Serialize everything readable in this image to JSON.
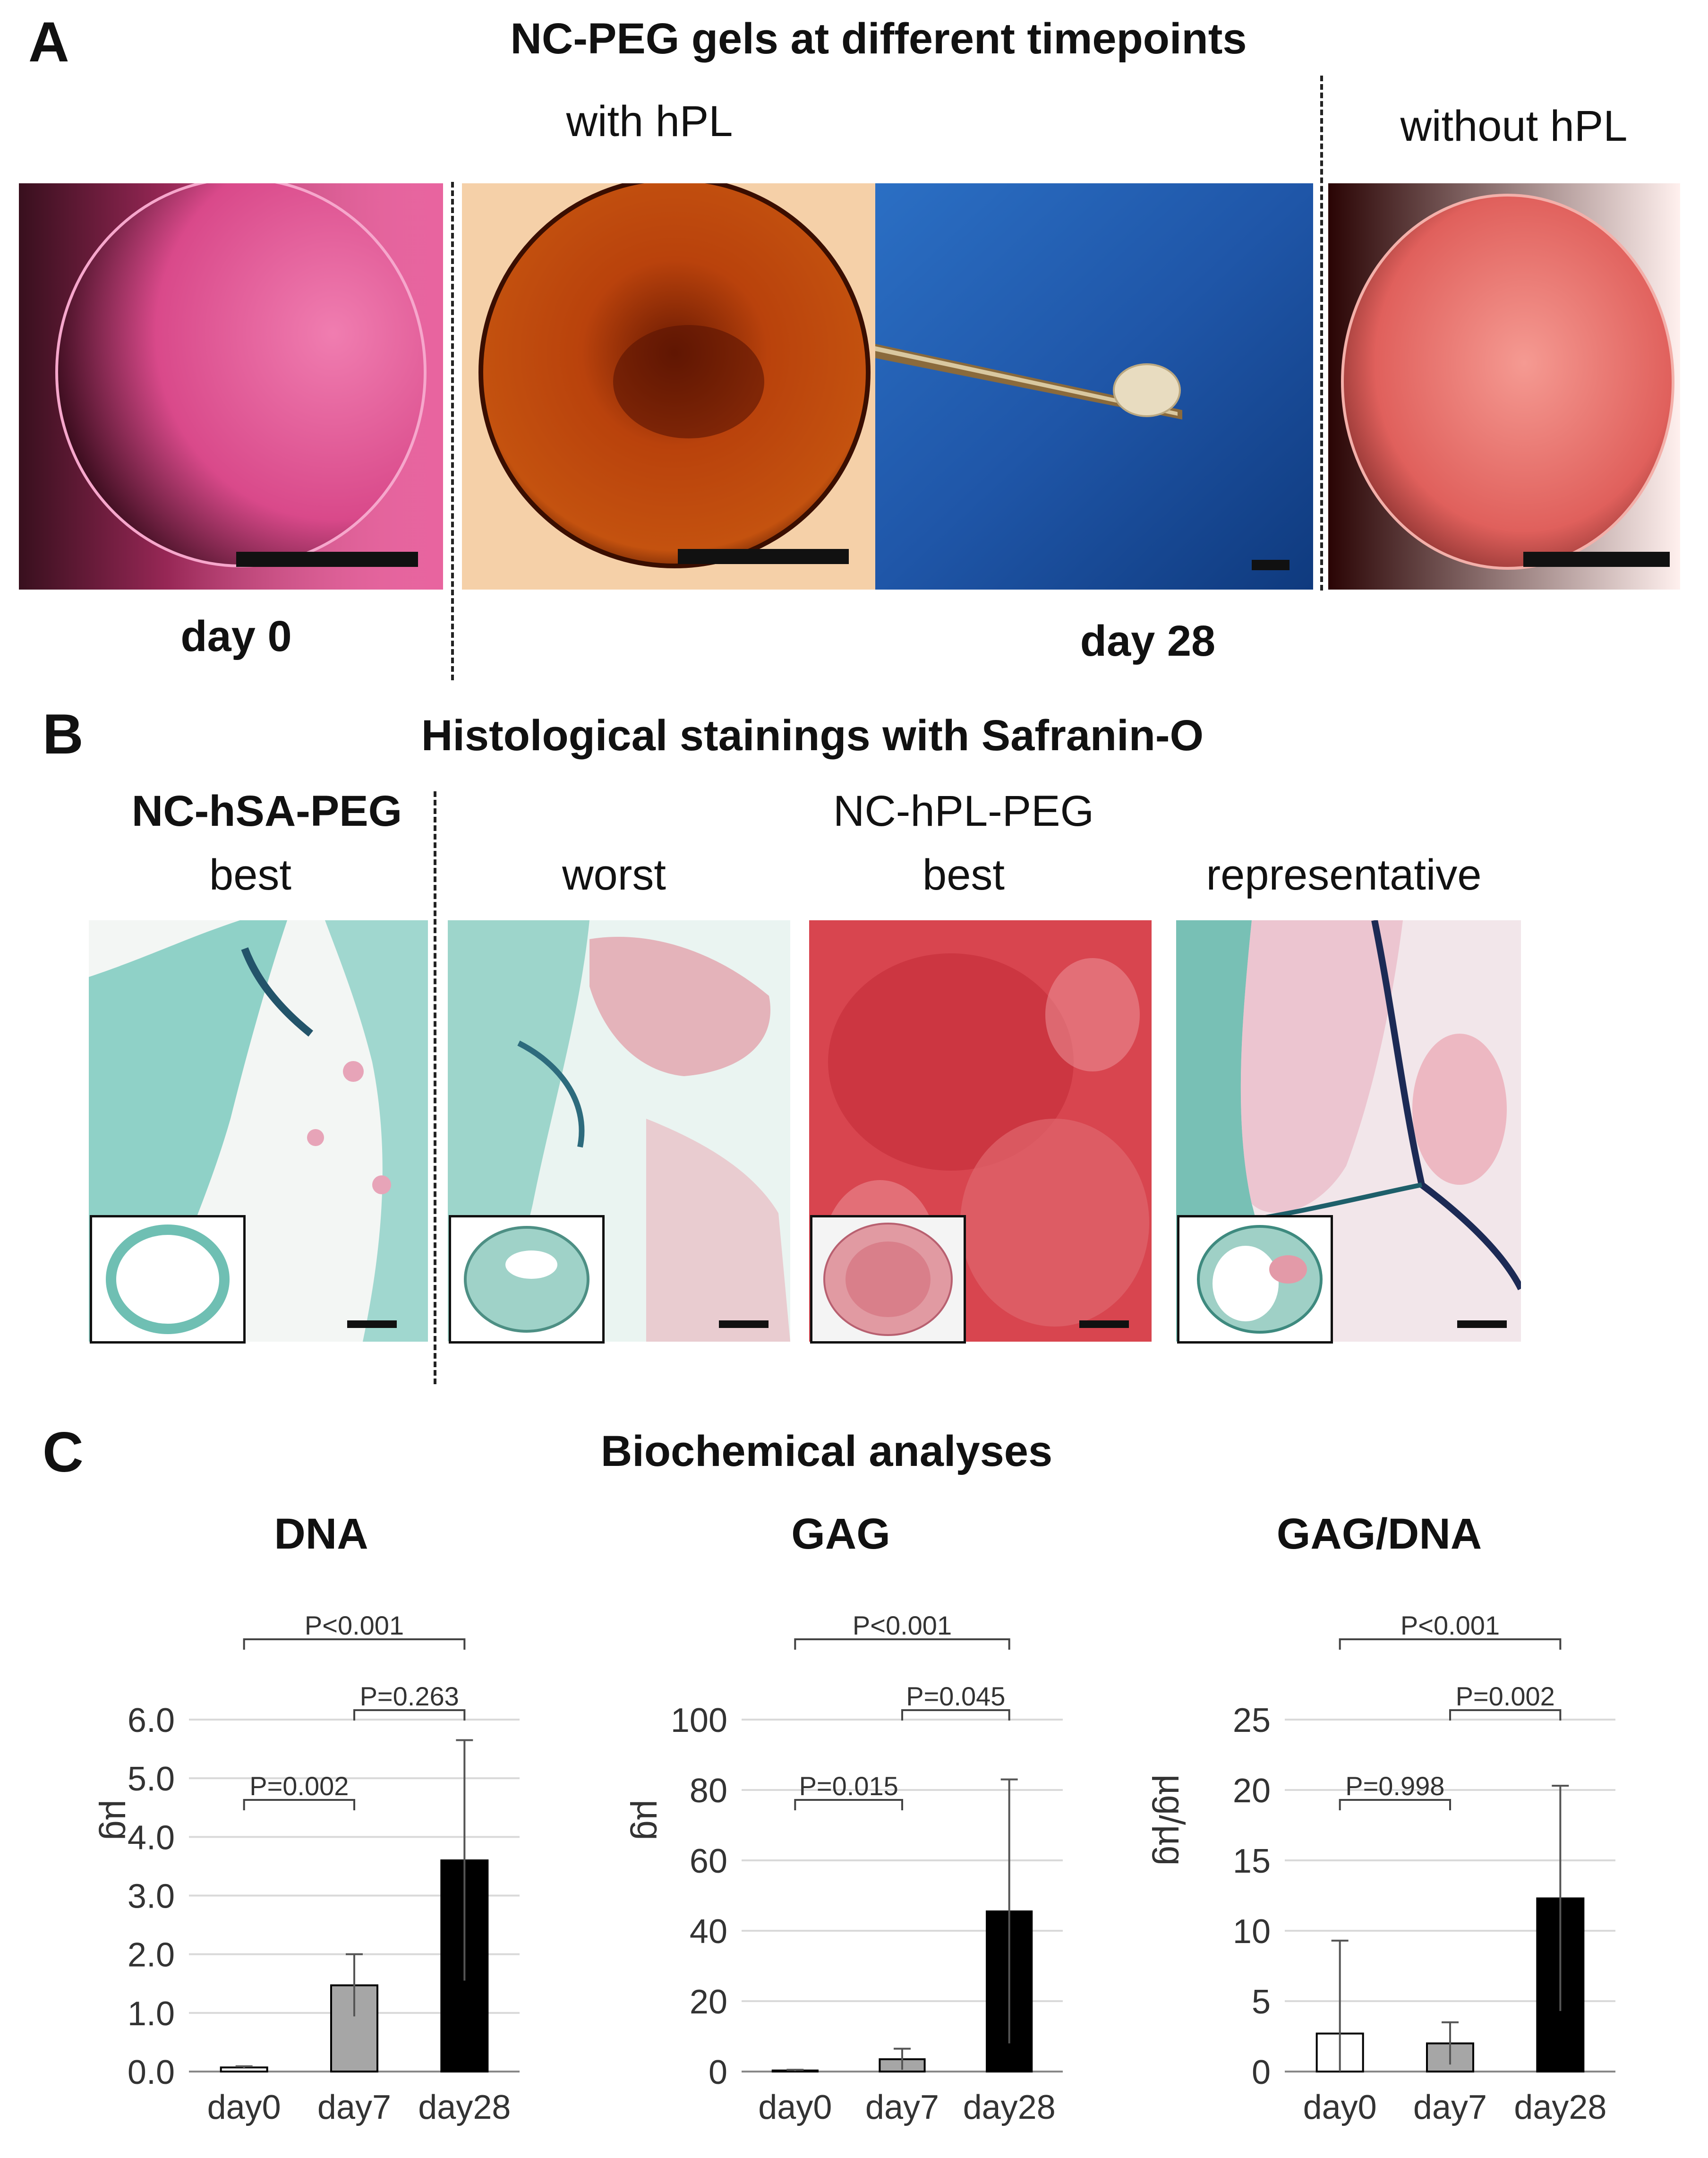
{
  "panel_a": {
    "letter": "A",
    "title": "NC-PEG gels at different timepoints",
    "with_label": "with hPL",
    "without_label": "without hPL",
    "day0_label": "day 0",
    "day28_label": "day 28",
    "colors": {
      "day0": "#e0508c",
      "with_hpl": "#c24a0c",
      "probe": "#1e5bb0",
      "without_hpl": "#e86a6a"
    }
  },
  "panel_b": {
    "letter": "B",
    "title": "Histological stainings with Safranin-O",
    "group1": "NC-hSA-PEG",
    "group2": "NC-hPL-PEG",
    "sub_labels": [
      "best",
      "worst",
      "best",
      "representative"
    ],
    "colors": {
      "counterstain": "#4fb8ab",
      "safranin": "#d8454f"
    }
  },
  "panel_c": {
    "letter": "C",
    "title": "Biochemical analyses"
  },
  "chart_data": [
    {
      "type": "bar",
      "title": "DNA",
      "ylabel": "µg",
      "categories": [
        "day0",
        "day7",
        "day28"
      ],
      "values": [
        0.07,
        1.47,
        3.6
      ],
      "error": [
        0.02,
        0.53,
        2.05
      ],
      "ylim": [
        0,
        6.0
      ],
      "yticks": [
        "0.0",
        "1.0",
        "2.0",
        "3.0",
        "4.0",
        "5.0",
        "6.0"
      ],
      "tick_values": [
        0,
        1,
        2,
        3,
        4,
        5,
        6
      ],
      "bar_colors": [
        "#ffffff",
        "#a6a6a6",
        "#000000"
      ],
      "grid": true,
      "comparisons": [
        {
          "from": 0,
          "to": 1,
          "label": "P=0.002"
        },
        {
          "from": 1,
          "to": 2,
          "label": "P=0.263"
        },
        {
          "from": 0,
          "to": 2,
          "label": "P<0.001"
        }
      ]
    },
    {
      "type": "bar",
      "title": "GAG",
      "ylabel": "µg",
      "categories": [
        "day0",
        "day7",
        "day28"
      ],
      "values": [
        0.3,
        3.5,
        45.5
      ],
      "error": [
        0.2,
        3.0,
        37.5
      ],
      "ylim": [
        0,
        100
      ],
      "yticks": [
        "0",
        "20",
        "40",
        "60",
        "80",
        "100"
      ],
      "tick_values": [
        0,
        20,
        40,
        60,
        80,
        100
      ],
      "bar_colors": [
        "#ffffff",
        "#a6a6a6",
        "#000000"
      ],
      "grid": true,
      "comparisons": [
        {
          "from": 0,
          "to": 1,
          "label": "P=0.015"
        },
        {
          "from": 1,
          "to": 2,
          "label": "P=0.045"
        },
        {
          "from": 0,
          "to": 2,
          "label": "P<0.001"
        }
      ]
    },
    {
      "type": "bar",
      "title": "GAG/DNA",
      "ylabel": "µg/µg",
      "categories": [
        "day0",
        "day7",
        "day28"
      ],
      "values": [
        2.7,
        2.0,
        12.3
      ],
      "error": [
        6.6,
        1.5,
        8.0
      ],
      "ylim": [
        0,
        25
      ],
      "yticks": [
        "0",
        "5",
        "10",
        "15",
        "20",
        "25"
      ],
      "tick_values": [
        0,
        5,
        10,
        15,
        20,
        25
      ],
      "bar_colors": [
        "#ffffff",
        "#a6a6a6",
        "#000000"
      ],
      "grid": true,
      "comparisons": [
        {
          "from": 0,
          "to": 1,
          "label": "P=0.998"
        },
        {
          "from": 1,
          "to": 2,
          "label": "P=0.002"
        },
        {
          "from": 0,
          "to": 2,
          "label": "P<0.001"
        }
      ]
    }
  ]
}
